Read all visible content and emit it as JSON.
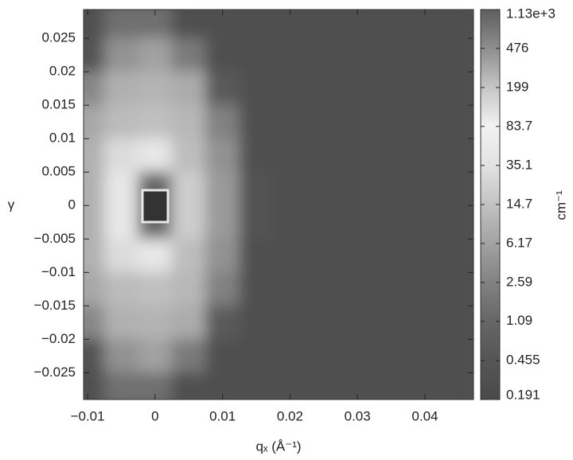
{
  "chart_data": {
    "type": "heatmap",
    "x_label": "qₓ (Å⁻¹)",
    "y_label": "γ",
    "colorbar_label": "cm⁻¹",
    "x": [
      -0.01,
      -0.005,
      0,
      0.005,
      0.01,
      0.015,
      0.02,
      0.025,
      0.03,
      0.035,
      0.04,
      0.045
    ],
    "y": [
      0.0275,
      0.0225,
      0.0175,
      0.0125,
      0.0075,
      0.0025,
      -0.0025,
      -0.0075,
      -0.0125,
      -0.0175,
      -0.0225,
      -0.0275
    ],
    "z": [
      [
        0.3,
        1.5,
        1.5,
        0.3,
        0.3,
        0.3,
        0.3,
        0.3,
        0.3,
        0.3,
        0.3,
        0.3
      ],
      [
        0.4,
        4,
        6,
        2,
        0.3,
        0.3,
        0.3,
        0.3,
        0.3,
        0.3,
        0.3,
        0.3
      ],
      [
        3,
        9,
        10,
        8,
        0.6,
        0.3,
        0.3,
        0.3,
        0.3,
        0.3,
        0.3,
        0.3
      ],
      [
        7,
        12,
        14,
        11,
        2.5,
        0.3,
        0.3,
        0.3,
        0.3,
        0.3,
        0.3,
        0.3
      ],
      [
        9,
        30,
        45,
        13,
        4,
        0.3,
        0.3,
        0.3,
        0.3,
        0.3,
        0.3,
        0.3
      ],
      [
        9,
        45,
        1000,
        20,
        5,
        0.35,
        0.3,
        0.3,
        0.3,
        0.3,
        0.3,
        0.3
      ],
      [
        9,
        45,
        1000,
        20,
        5,
        0.35,
        0.3,
        0.3,
        0.3,
        0.3,
        0.3,
        0.3
      ],
      [
        9,
        30,
        45,
        13,
        4,
        0.3,
        0.3,
        0.3,
        0.3,
        0.3,
        0.3,
        0.3
      ],
      [
        7,
        12,
        14,
        11,
        2.5,
        0.3,
        0.3,
        0.3,
        0.3,
        0.3,
        0.3,
        0.3
      ],
      [
        3,
        9,
        10,
        8,
        0.6,
        0.3,
        0.3,
        0.3,
        0.3,
        0.3,
        0.3,
        0.3
      ],
      [
        0.4,
        4,
        6,
        2,
        0.3,
        0.3,
        0.3,
        0.3,
        0.3,
        0.3,
        0.3,
        0.3
      ],
      [
        0.3,
        1.5,
        1.5,
        0.3,
        0.3,
        0.3,
        0.3,
        0.3,
        0.3,
        0.3,
        0.3,
        0.3
      ]
    ],
    "xlim": [
      -0.0106,
      0.0472
    ],
    "ylim": [
      -0.029,
      0.0293
    ],
    "xticks": [
      {
        "value": -0.01,
        "label": "−0.01"
      },
      0,
      0.01,
      0.02,
      0.03,
      0.04
    ],
    "yticks": [
      0.025,
      0.02,
      0.015,
      0.01,
      0.005,
      0,
      {
        "value": -0.005,
        "label": "−0.005"
      },
      {
        "value": -0.01,
        "label": "−0.01"
      },
      {
        "value": -0.015,
        "label": "−0.015"
      },
      {
        "value": -0.02,
        "label": "−0.02"
      },
      {
        "value": -0.025,
        "label": "−0.025"
      }
    ],
    "colorbar_lim": [
      0.191,
      1130
    ],
    "colorbar_log": true,
    "colorbar_ticks": [
      {
        "value": 1130,
        "label": "1.13e+3"
      },
      476,
      199,
      83.7,
      35.1,
      14.7,
      6.17,
      2.59,
      1.09,
      0.455,
      0.191
    ],
    "colorscale": [
      "#4a4a4a",
      "#555555",
      "#666666",
      "#828282",
      "#a2a2a2",
      "#c2c2c2",
      "#e2e2e2",
      "#f2f2f2",
      "#c6c6c6",
      "#8e8e8e",
      "#5e5e5e"
    ]
  }
}
